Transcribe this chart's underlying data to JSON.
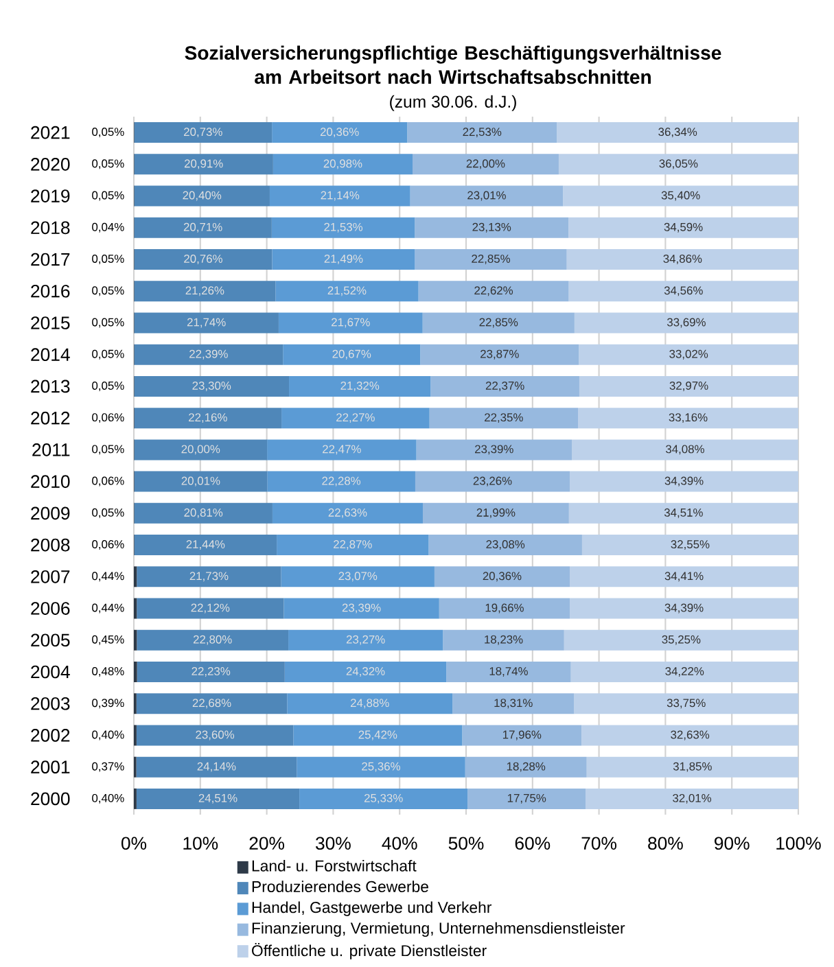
{
  "chart_data": {
    "type": "bar",
    "orientation": "horizontal",
    "stacked": true,
    "title": "Sozialversicherungspflichtige Beschäftigungsverhältnisse am Arbeitsort nach Wirtschaftsabschnitten",
    "subtitle": "(zum 30.06. d.J.)",
    "categories": [
      "2021",
      "2020",
      "2019",
      "2018",
      "2017",
      "2016",
      "2015",
      "2014",
      "2013",
      "2012",
      "2011",
      "2010",
      "2009",
      "2008",
      "2007",
      "2006",
      "2005",
      "2004",
      "2003",
      "2002",
      "2001",
      "2000"
    ],
    "series": [
      {
        "name": "Land- u. Forstwirtschaft",
        "color": "#2e3a48",
        "values": [
          0.05,
          0.05,
          0.05,
          0.04,
          0.05,
          0.05,
          0.05,
          0.05,
          0.05,
          0.06,
          0.05,
          0.06,
          0.05,
          0.06,
          0.44,
          0.44,
          0.45,
          0.48,
          0.39,
          0.4,
          0.37,
          0.4
        ],
        "value_labels": [
          "0,05%",
          "0,05%",
          "0,05%",
          "0,04%",
          "0,05%",
          "0,05%",
          "0,05%",
          "0,05%",
          "0,05%",
          "0,06%",
          "0,05%",
          "0,06%",
          "0,05%",
          "0,06%",
          "0,44%",
          "0,44%",
          "0,45%",
          "0,48%",
          "0,39%",
          "0,40%",
          "0,37%",
          "0,40%"
        ]
      },
      {
        "name": "Produzierendes Gewerbe",
        "color": "#4f87b9",
        "values": [
          20.73,
          20.91,
          20.4,
          20.71,
          20.76,
          21.26,
          21.74,
          22.39,
          23.3,
          22.16,
          20.0,
          20.01,
          20.81,
          21.44,
          21.73,
          22.12,
          22.8,
          22.23,
          22.68,
          23.6,
          24.14,
          24.51
        ],
        "value_labels": [
          "20,73%",
          "20,91%",
          "20,40%",
          "20,71%",
          "20,76%",
          "21,26%",
          "21,74%",
          "22,39%",
          "23,30%",
          "22,16%",
          "20,00%",
          "20,01%",
          "20,81%",
          "21,44%",
          "21,73%",
          "22,12%",
          "22,80%",
          "22,23%",
          "22,68%",
          "23,60%",
          "24,14%",
          "24,51%"
        ]
      },
      {
        "name": "Handel, Gastgewerbe und Verkehr",
        "color": "#5b9bd5",
        "values": [
          20.36,
          20.98,
          21.14,
          21.53,
          21.49,
          21.52,
          21.67,
          20.67,
          21.32,
          22.27,
          22.47,
          22.28,
          22.63,
          22.87,
          23.07,
          23.39,
          23.27,
          24.32,
          24.88,
          25.42,
          25.36,
          25.33
        ],
        "value_labels": [
          "20,36%",
          "20,98%",
          "21,14%",
          "21,53%",
          "21,49%",
          "21,52%",
          "21,67%",
          "20,67%",
          "21,32%",
          "22,27%",
          "22,47%",
          "22,28%",
          "22,63%",
          "22,87%",
          "23,07%",
          "23,39%",
          "23,27%",
          "24,32%",
          "24,88%",
          "25,42%",
          "25,36%",
          "25,33%"
        ]
      },
      {
        "name": "Finanzierung, Vermietung, Unternehmensdienstleister",
        "color": "#97b9df",
        "values": [
          22.53,
          22.0,
          23.01,
          23.13,
          22.85,
          22.62,
          22.85,
          23.87,
          22.37,
          22.35,
          23.39,
          23.26,
          21.99,
          23.08,
          20.36,
          19.66,
          18.23,
          18.74,
          18.31,
          17.96,
          18.28,
          17.75
        ],
        "value_labels": [
          "22,53%",
          "22,00%",
          "23,01%",
          "23,13%",
          "22,85%",
          "22,62%",
          "22,85%",
          "23,87%",
          "22,37%",
          "22,35%",
          "23,39%",
          "23,26%",
          "21,99%",
          "23,08%",
          "20,36%",
          "19,66%",
          "18,23%",
          "18,74%",
          "18,31%",
          "17,96%",
          "18,28%",
          "17,75%"
        ]
      },
      {
        "name": "Öffentliche u. private Dienstleister",
        "color": "#bdd1ea",
        "values": [
          36.34,
          36.05,
          35.4,
          34.59,
          34.86,
          34.56,
          33.69,
          33.02,
          32.97,
          33.16,
          34.08,
          34.39,
          34.51,
          32.55,
          34.41,
          34.39,
          35.25,
          34.22,
          33.75,
          32.63,
          31.85,
          32.01
        ],
        "value_labels": [
          "36,34%",
          "36,05%",
          "35,40%",
          "34,59%",
          "34,86%",
          "34,56%",
          "33,69%",
          "33,02%",
          "32,97%",
          "33,16%",
          "34,08%",
          "34,39%",
          "34,51%",
          "32,55%",
          "34,41%",
          "34,39%",
          "35,25%",
          "34,22%",
          "33,75%",
          "32,63%",
          "31,85%",
          "32,01%"
        ]
      }
    ],
    "xlim": [
      0,
      100
    ],
    "xticks": [
      {
        "value": 0,
        "label": "0%"
      },
      {
        "value": 10,
        "label": "10%"
      },
      {
        "value": 20,
        "label": "20%"
      },
      {
        "value": 30,
        "label": "30%"
      },
      {
        "value": 40,
        "label": "40%"
      },
      {
        "value": 50,
        "label": "50%"
      },
      {
        "value": 60,
        "label": "60%"
      },
      {
        "value": 70,
        "label": "70%"
      },
      {
        "value": 80,
        "label": "80%"
      },
      {
        "value": 90,
        "label": "90%"
      },
      {
        "value": 100,
        "label": "100%"
      }
    ],
    "grid": "x",
    "legend": "bottom"
  }
}
